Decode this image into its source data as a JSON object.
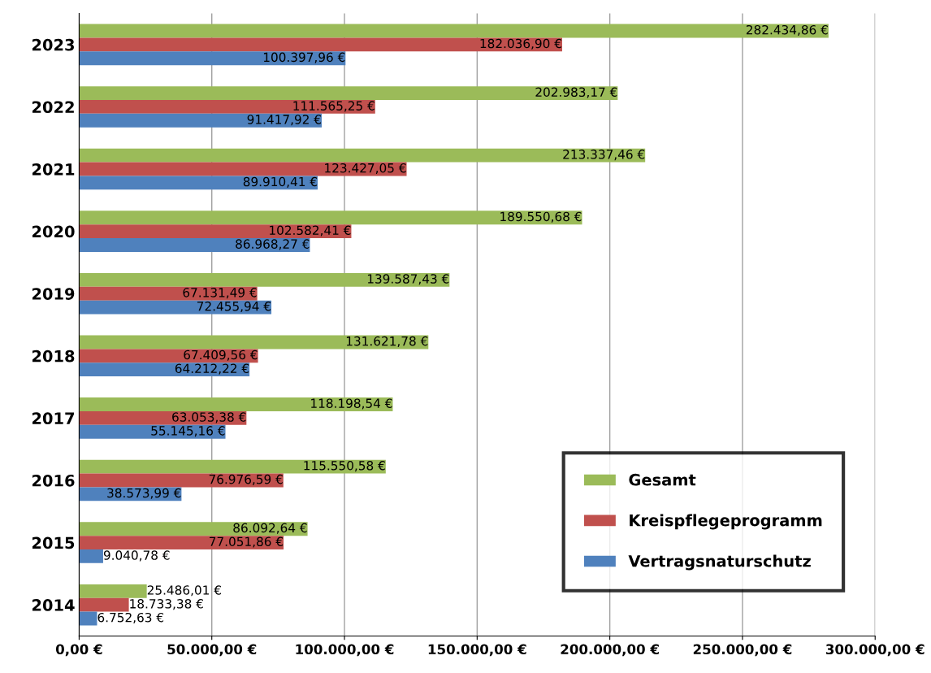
{
  "chart_data": {
    "type": "bar",
    "orientation": "horizontal",
    "categories": [
      "2023",
      "2022",
      "2021",
      "2020",
      "2019",
      "2018",
      "2017",
      "2016",
      "2015",
      "2014"
    ],
    "series": [
      {
        "name": "Gesamt",
        "color": "#9bbb59",
        "values": [
          282434.86,
          202983.17,
          213337.46,
          189550.68,
          139587.43,
          131621.78,
          118198.54,
          115550.58,
          86092.64,
          25486.01
        ],
        "value_labels": [
          "282.434,86 €",
          "202.983,17 €",
          "213.337,46 €",
          "189.550,68 €",
          "139.587,43 €",
          "131.621,78 €",
          "118.198,54 €",
          "115.550,58 €",
          "86.092,64 €",
          "25.486,01 €"
        ]
      },
      {
        "name": "Kreispflegeprogramm",
        "color": "#c0504d",
        "values": [
          182036.9,
          111565.25,
          123427.05,
          102582.41,
          67131.49,
          67409.56,
          63053.38,
          76976.59,
          77051.86,
          18733.38
        ],
        "value_labels": [
          "182.036,90 €",
          "111.565,25 €",
          "123.427,05 €",
          "102.582,41 €",
          "67.131,49 €",
          "67.409,56 €",
          "63.053,38 €",
          "76.976,59 €",
          "77.051,86 €",
          "18.733,38 €"
        ]
      },
      {
        "name": "Vertragsnaturschutz",
        "color": "#4f81bd",
        "values": [
          100397.96,
          91417.92,
          89910.41,
          86968.27,
          72455.94,
          64212.22,
          55145.16,
          38573.99,
          9040.78,
          6752.63
        ],
        "value_labels": [
          "100.397,96 €",
          "91.417,92 €",
          "89.910,41 €",
          "86.968,27 €",
          "72.455,94 €",
          "64.212,22 €",
          "55.145,16 €",
          "38.573,99 €",
          "9.040,78 €",
          "6.752,63 €"
        ]
      }
    ],
    "xlim": [
      0,
      300000
    ],
    "xticks": [
      {
        "value": 0,
        "label": "0,00 €"
      },
      {
        "value": 50000,
        "label": "50.000,00 €"
      },
      {
        "value": 100000,
        "label": "100.000,00 €"
      },
      {
        "value": 150000,
        "label": "150.000,00 €"
      },
      {
        "value": 200000,
        "label": "200.000,00 €"
      },
      {
        "value": 250000,
        "label": "250.000,00 €"
      },
      {
        "value": 300000,
        "label": "300.000,00 €"
      }
    ],
    "grid": "x",
    "legend": "bottom right"
  }
}
